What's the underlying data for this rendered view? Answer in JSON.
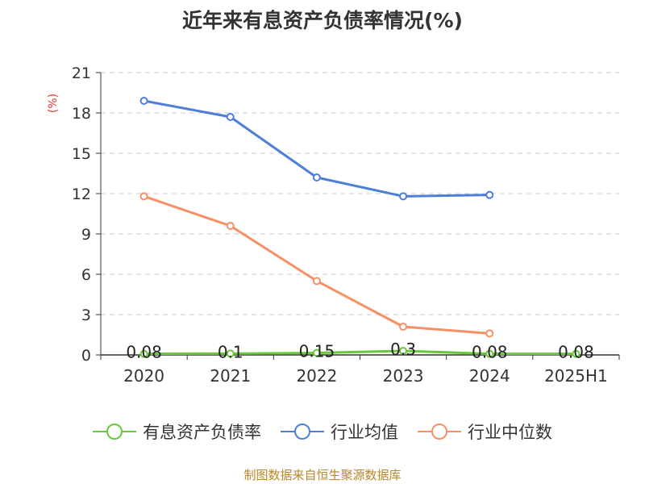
{
  "chart_data": {
    "type": "line",
    "title": "近年来有息资产负债率情况(%)",
    "ylabel": "(%)",
    "categories": [
      "2020",
      "2021",
      "2022",
      "2023",
      "2024",
      "2025H1"
    ],
    "yticks": [
      0,
      3,
      6,
      9,
      12,
      15,
      18,
      21
    ],
    "ylim": [
      0,
      21
    ],
    "grid": true,
    "legend_position": "bottom",
    "series": [
      {
        "name": "有息资产负债率",
        "color": "#6ac83a",
        "values": [
          0.08,
          0.1,
          0.15,
          0.3,
          0.08,
          0.08
        ],
        "labels": [
          "0.08",
          "0.1",
          "0.15",
          "0.3",
          "0.08",
          "0.08"
        ]
      },
      {
        "name": "行业均值",
        "color": "#4d7fd8",
        "values": [
          18.9,
          17.7,
          13.2,
          11.8,
          11.9,
          null
        ]
      },
      {
        "name": "行业中位数",
        "color": "#f79064",
        "values": [
          11.8,
          9.6,
          5.5,
          2.1,
          1.6,
          null
        ]
      }
    ]
  },
  "source": "制图数据来自恒生聚源数据库"
}
